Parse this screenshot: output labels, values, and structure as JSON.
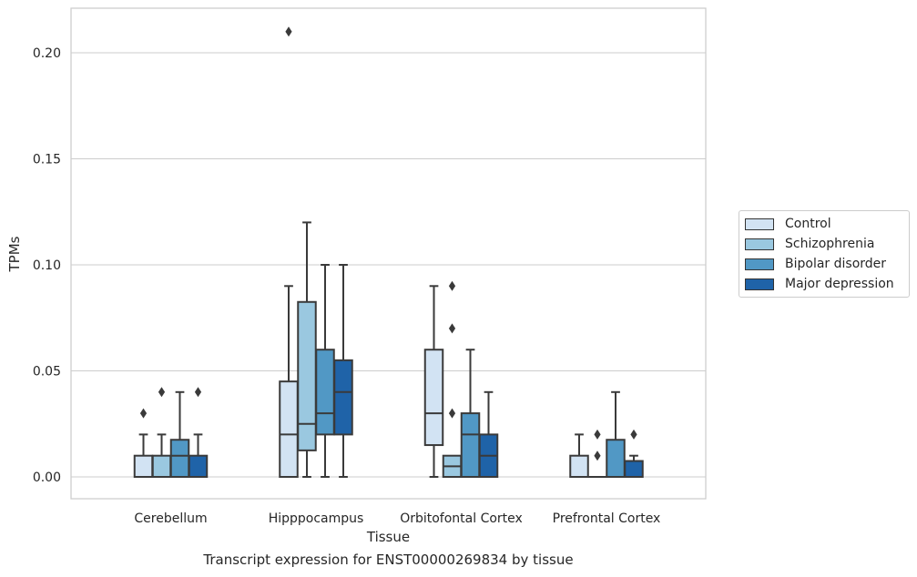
{
  "chart_data": {
    "type": "box",
    "caption": "Transcript expression for ENST00000269834 by tissue",
    "xlabel": "Tissue",
    "ylabel": "TPMs",
    "ylim": [
      -0.01,
      0.22
    ],
    "yticks": [
      "0.00",
      "0.05",
      "0.10",
      "0.15",
      "0.20"
    ],
    "ytick_values": [
      0,
      0.05,
      0.1,
      0.15,
      0.2
    ],
    "grid": true,
    "legend_position": "right",
    "categories": [
      "Cerebellum",
      "Hipppocampus",
      "Orbitofontal Cortex",
      "Prefrontal Cortex"
    ],
    "series": [
      {
        "name": "Control",
        "color": "#d2e3f3",
        "boxes": [
          {
            "whislo": 0.0,
            "q1": 0.0,
            "med": 0.0,
            "q3": 0.01,
            "whishi": 0.02,
            "fliers": [
              0.03
            ]
          },
          {
            "whislo": 0.0,
            "q1": 0.0,
            "med": 0.02,
            "q3": 0.045,
            "whishi": 0.09,
            "fliers": [
              0.21
            ]
          },
          {
            "whislo": 0.0,
            "q1": 0.015,
            "med": 0.03,
            "q3": 0.06,
            "whishi": 0.09,
            "fliers": []
          },
          {
            "whislo": 0.0,
            "q1": 0.0,
            "med": 0.0,
            "q3": 0.01,
            "whishi": 0.02,
            "fliers": []
          }
        ]
      },
      {
        "name": "Schizophrenia",
        "color": "#9ac8e0",
        "boxes": [
          {
            "whislo": 0.0,
            "q1": 0.0,
            "med": 0.0,
            "q3": 0.01,
            "whishi": 0.02,
            "fliers": [
              0.04
            ]
          },
          {
            "whislo": 0.0,
            "q1": 0.0125,
            "med": 0.025,
            "q3": 0.0825,
            "whishi": 0.12,
            "fliers": []
          },
          {
            "whislo": 0.0,
            "q1": 0.0,
            "med": 0.005,
            "q3": 0.01,
            "whishi": 0.01,
            "fliers": [
              0.03,
              0.07,
              0.09
            ]
          },
          {
            "whislo": 0.0,
            "q1": 0.0,
            "med": 0.0,
            "q3": 0.0,
            "whishi": 0.0,
            "fliers": [
              0.01,
              0.02
            ]
          }
        ]
      },
      {
        "name": "Bipolar disorder",
        "color": "#5198c5",
        "boxes": [
          {
            "whislo": 0.0,
            "q1": 0.0,
            "med": 0.01,
            "q3": 0.0175,
            "whishi": 0.04,
            "fliers": []
          },
          {
            "whislo": 0.0,
            "q1": 0.02,
            "med": 0.03,
            "q3": 0.06,
            "whishi": 0.1,
            "fliers": []
          },
          {
            "whislo": 0.0,
            "q1": 0.0,
            "med": 0.02,
            "q3": 0.03,
            "whishi": 0.06,
            "fliers": []
          },
          {
            "whislo": 0.0,
            "q1": 0.0,
            "med": 0.0,
            "q3": 0.0175,
            "whishi": 0.04,
            "fliers": []
          }
        ]
      },
      {
        "name": "Major depression",
        "color": "#1f63a8",
        "boxes": [
          {
            "whislo": 0.0,
            "q1": 0.0,
            "med": 0.0,
            "q3": 0.01,
            "whishi": 0.02,
            "fliers": [
              0.04
            ]
          },
          {
            "whislo": 0.0,
            "q1": 0.02,
            "med": 0.04,
            "q3": 0.055,
            "whishi": 0.1,
            "fliers": []
          },
          {
            "whislo": 0.0,
            "q1": 0.0,
            "med": 0.01,
            "q3": 0.02,
            "whishi": 0.04,
            "fliers": []
          },
          {
            "whislo": 0.0,
            "q1": 0.0,
            "med": 0.0,
            "q3": 0.0075,
            "whishi": 0.01,
            "fliers": [
              0.02
            ]
          }
        ]
      }
    ]
  }
}
